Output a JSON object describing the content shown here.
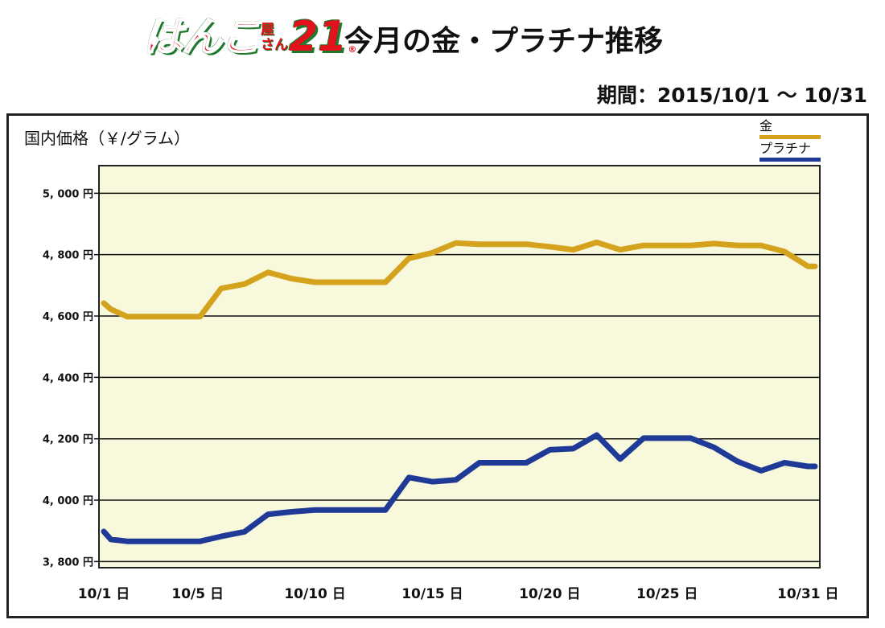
{
  "header": {
    "logo_main": "はんこ",
    "logo_small_top": "屋",
    "logo_small_bottom": "さん",
    "logo_number": "21",
    "logo_reg": "®",
    "title": "今月の金・プラチナ推移",
    "period": "期間：2015/10/1 〜 10/31"
  },
  "colors": {
    "gold": "#d4a21d",
    "platinum": "#1e3a96",
    "plot_bg": "#f8f8dc",
    "grid": "#111111"
  },
  "chart_data": {
    "type": "line",
    "title": "今月の金・プラチナ推移",
    "ylabel": "国内価格（￥/グラム）",
    "xlabel": "",
    "ylim": [
      3780,
      5090
    ],
    "xlim": [
      1,
      31
    ],
    "y_ticks": [
      3800,
      4000,
      4200,
      4400,
      4600,
      4800,
      5000
    ],
    "y_tick_labels": [
      "3, 800 円",
      "4, 000 円",
      "4, 200 円",
      "4, 400 円",
      "4, 600 円",
      "4, 800 円",
      "5, 000 円"
    ],
    "x_ticks": [
      1,
      5,
      10,
      15,
      20,
      25,
      31
    ],
    "x_tick_labels": [
      "10/1 日",
      "10/5 日",
      "10/10 日",
      "10/15 日",
      "10/20 日",
      "10/25 日",
      "10/31 日"
    ],
    "grid": true,
    "legend_position": "top-right",
    "series": [
      {
        "name": "金",
        "color": "#d4a21d",
        "points": [
          [
            1,
            4642
          ],
          [
            1.3,
            4622
          ],
          [
            2,
            4598
          ],
          [
            3,
            4598
          ],
          [
            4,
            4598
          ],
          [
            5,
            4598
          ],
          [
            5.1,
            4598
          ],
          [
            6,
            4690
          ],
          [
            7,
            4704
          ],
          [
            8,
            4742
          ],
          [
            9,
            4722
          ],
          [
            10,
            4710
          ],
          [
            11,
            4710
          ],
          [
            12,
            4710
          ],
          [
            13,
            4710
          ],
          [
            14,
            4788
          ],
          [
            15,
            4806
          ],
          [
            16,
            4838
          ],
          [
            17,
            4834
          ],
          [
            18,
            4834
          ],
          [
            19,
            4834
          ],
          [
            20,
            4826
          ],
          [
            21,
            4816
          ],
          [
            22,
            4840
          ],
          [
            23,
            4816
          ],
          [
            24,
            4830
          ],
          [
            25,
            4830
          ],
          [
            26,
            4830
          ],
          [
            27,
            4836
          ],
          [
            28,
            4830
          ],
          [
            29,
            4830
          ],
          [
            30,
            4810
          ],
          [
            31,
            4762
          ],
          [
            31.3,
            4762
          ]
        ]
      },
      {
        "name": "プラチナ",
        "color": "#1e3a96",
        "points": [
          [
            1,
            3898
          ],
          [
            1.3,
            3872
          ],
          [
            2,
            3866
          ],
          [
            3,
            3866
          ],
          [
            4,
            3866
          ],
          [
            5,
            3866
          ],
          [
            5.1,
            3866
          ],
          [
            6,
            3882
          ],
          [
            7,
            3897
          ],
          [
            8,
            3954
          ],
          [
            9,
            3962
          ],
          [
            10,
            3968
          ],
          [
            11,
            3968
          ],
          [
            12,
            3968
          ],
          [
            13,
            3968
          ],
          [
            14,
            4074
          ],
          [
            15,
            4060
          ],
          [
            16,
            4066
          ],
          [
            17,
            4122
          ],
          [
            18,
            4122
          ],
          [
            19,
            4122
          ],
          [
            20,
            4164
          ],
          [
            21,
            4168
          ],
          [
            22,
            4212
          ],
          [
            23,
            4134
          ],
          [
            24,
            4202
          ],
          [
            25,
            4202
          ],
          [
            26,
            4202
          ],
          [
            27,
            4172
          ],
          [
            28,
            4126
          ],
          [
            29,
            4096
          ],
          [
            30,
            4122
          ],
          [
            31,
            4110
          ],
          [
            31.3,
            4110
          ]
        ]
      }
    ]
  },
  "legend": [
    {
      "label": "金",
      "color": "#d4a21d"
    },
    {
      "label": "プラチナ",
      "color": "#1e3a96"
    }
  ]
}
